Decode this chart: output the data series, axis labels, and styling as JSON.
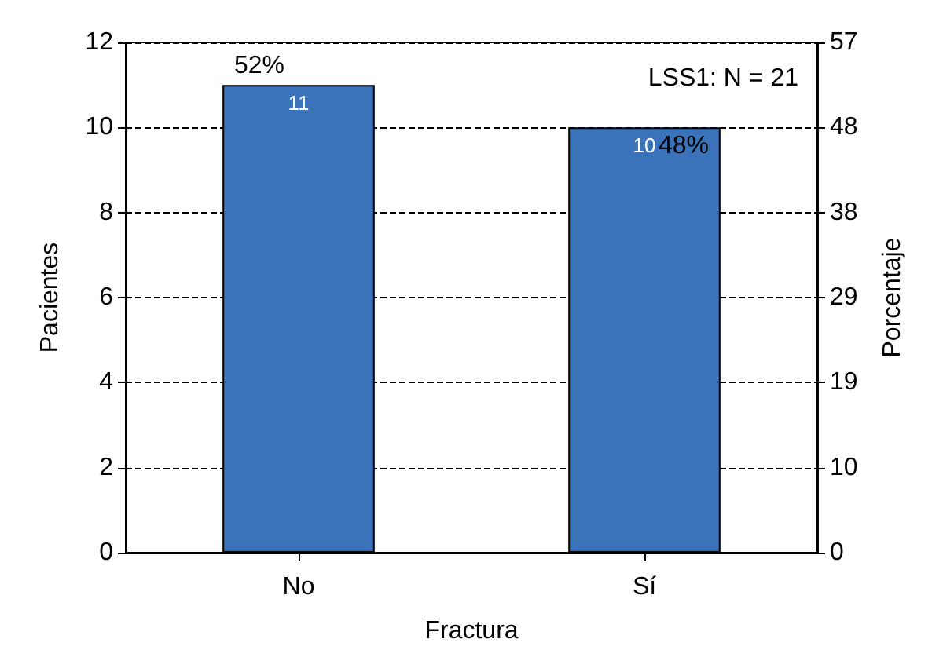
{
  "chart_data": {
    "type": "bar",
    "categories": [
      "No",
      "Sí"
    ],
    "values": [
      11,
      10
    ],
    "color": "#3a73b9",
    "data_labels": true,
    "xlabel": "Fractura",
    "ylabel": "Pacientes",
    "y2label": "Porcentaje",
    "ylim": [
      0,
      12
    ],
    "yticks": [
      0,
      2,
      4,
      6,
      8,
      10,
      12
    ],
    "y2lim": [
      0,
      57
    ],
    "y2ticks": [
      0,
      {
        "value": 9.5,
        "label": "10"
      },
      19,
      {
        "value": 28.5,
        "label": "29"
      },
      38,
      {
        "value": 47.5,
        "label": "48"
      },
      57
    ],
    "grid": "y",
    "annotations": [
      {
        "text": "52%",
        "x": "No",
        "y": 11
      },
      {
        "text": "48%",
        "x": "Sí",
        "y": 10
      },
      "LSS1: N = 21"
    ]
  }
}
